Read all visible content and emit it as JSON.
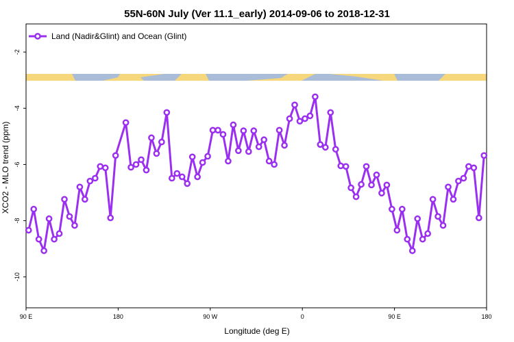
{
  "chart_data": {
    "type": "line",
    "title": "55N-60N July (Ver 11.1_early)   2014-09-06 to 2018-12-31",
    "xlabel": "Longitude (deg E)",
    "ylabel": "XCO2 - MLO trend (ppm)",
    "xlim": [
      90,
      540
    ],
    "ylim": [
      -11.1,
      -1.0
    ],
    "xticks": [
      {
        "value": 90,
        "label": "90 E"
      },
      180,
      {
        "value": 270,
        "label": "90 W"
      },
      {
        "value": 360,
        "label": "0"
      },
      {
        "value": 450,
        "label": "90 E"
      },
      {
        "value": 540,
        "label": "180"
      }
    ],
    "yticks": [
      -2,
      -4,
      -6,
      -8,
      -10
    ],
    "legend": "top-left",
    "series": [
      {
        "name": "Land (Nadir&Glint) and Ocean (Glint)",
        "color": "#9b2ff0",
        "x": [
          92.5,
          97.5,
          102.5,
          107.5,
          112.5,
          117.5,
          122.5,
          127.5,
          132.5,
          137.5,
          142.5,
          147.5,
          152.5,
          157.5,
          162.5,
          167.5,
          172.5,
          177.5,
          187.5,
          192.5,
          197.5,
          202.5,
          207.5,
          212.5,
          217.5,
          222.5,
          227.5,
          232.5,
          237.5,
          242.5,
          247.5,
          252.5,
          257.5,
          262.5,
          267.5,
          272.5,
          277.5,
          282.5,
          287.5,
          292.5,
          297.5,
          302.5,
          307.5,
          312.5,
          317.5,
          322.5,
          327.5,
          332.5,
          337.5,
          342.5,
          347.5,
          352.5,
          357.5,
          362.5,
          367.5,
          372.5,
          377.5,
          382.5,
          387.5,
          392.5,
          397.5,
          402.5,
          407.5,
          412.5,
          417.5,
          422.5,
          427.5,
          432.5,
          437.5,
          442.5,
          447.5,
          452.5,
          457.5,
          462.5,
          467.5,
          472.5,
          477.5,
          482.5,
          487.5,
          492.5,
          497.5,
          502.5,
          507.5,
          512.5,
          517.5,
          522.5,
          527.5,
          532.5,
          537.5
        ],
        "values": [
          -8.34,
          -7.59,
          -8.66,
          -9.07,
          -7.93,
          -8.66,
          -8.46,
          -7.24,
          -7.85,
          -8.17,
          -6.8,
          -7.24,
          -6.59,
          -6.49,
          -6.07,
          -6.12,
          -7.9,
          -5.68,
          -4.51,
          -6.1,
          -6.0,
          -5.83,
          -6.2,
          -5.05,
          -5.61,
          -5.2,
          -4.15,
          -6.49,
          -6.32,
          -6.44,
          -6.68,
          -5.73,
          -6.44,
          -5.93,
          -5.71,
          -4.78,
          -4.78,
          -4.93,
          -5.88,
          -4.59,
          -5.51,
          -4.8,
          -5.54,
          -4.8,
          -5.37,
          -5.12,
          -5.88,
          -6.0,
          -4.78,
          -5.32,
          -4.37,
          -3.88,
          -4.46,
          -4.37,
          -4.27,
          -3.59,
          -5.29,
          -5.39,
          -4.15,
          -5.46,
          -6.05,
          -6.07,
          -6.83,
          -7.15,
          -6.71,
          -6.07,
          -6.73,
          -6.37,
          -7.02,
          -6.73,
          -7.59,
          -8.34,
          -7.59,
          -8.66,
          -9.07,
          -7.93,
          -8.66,
          -8.46,
          -7.24,
          -7.85,
          -8.17,
          -6.8,
          -7.24,
          -6.59,
          -6.49,
          -6.07,
          -6.12,
          -7.9,
          -5.68
        ]
      }
    ]
  }
}
